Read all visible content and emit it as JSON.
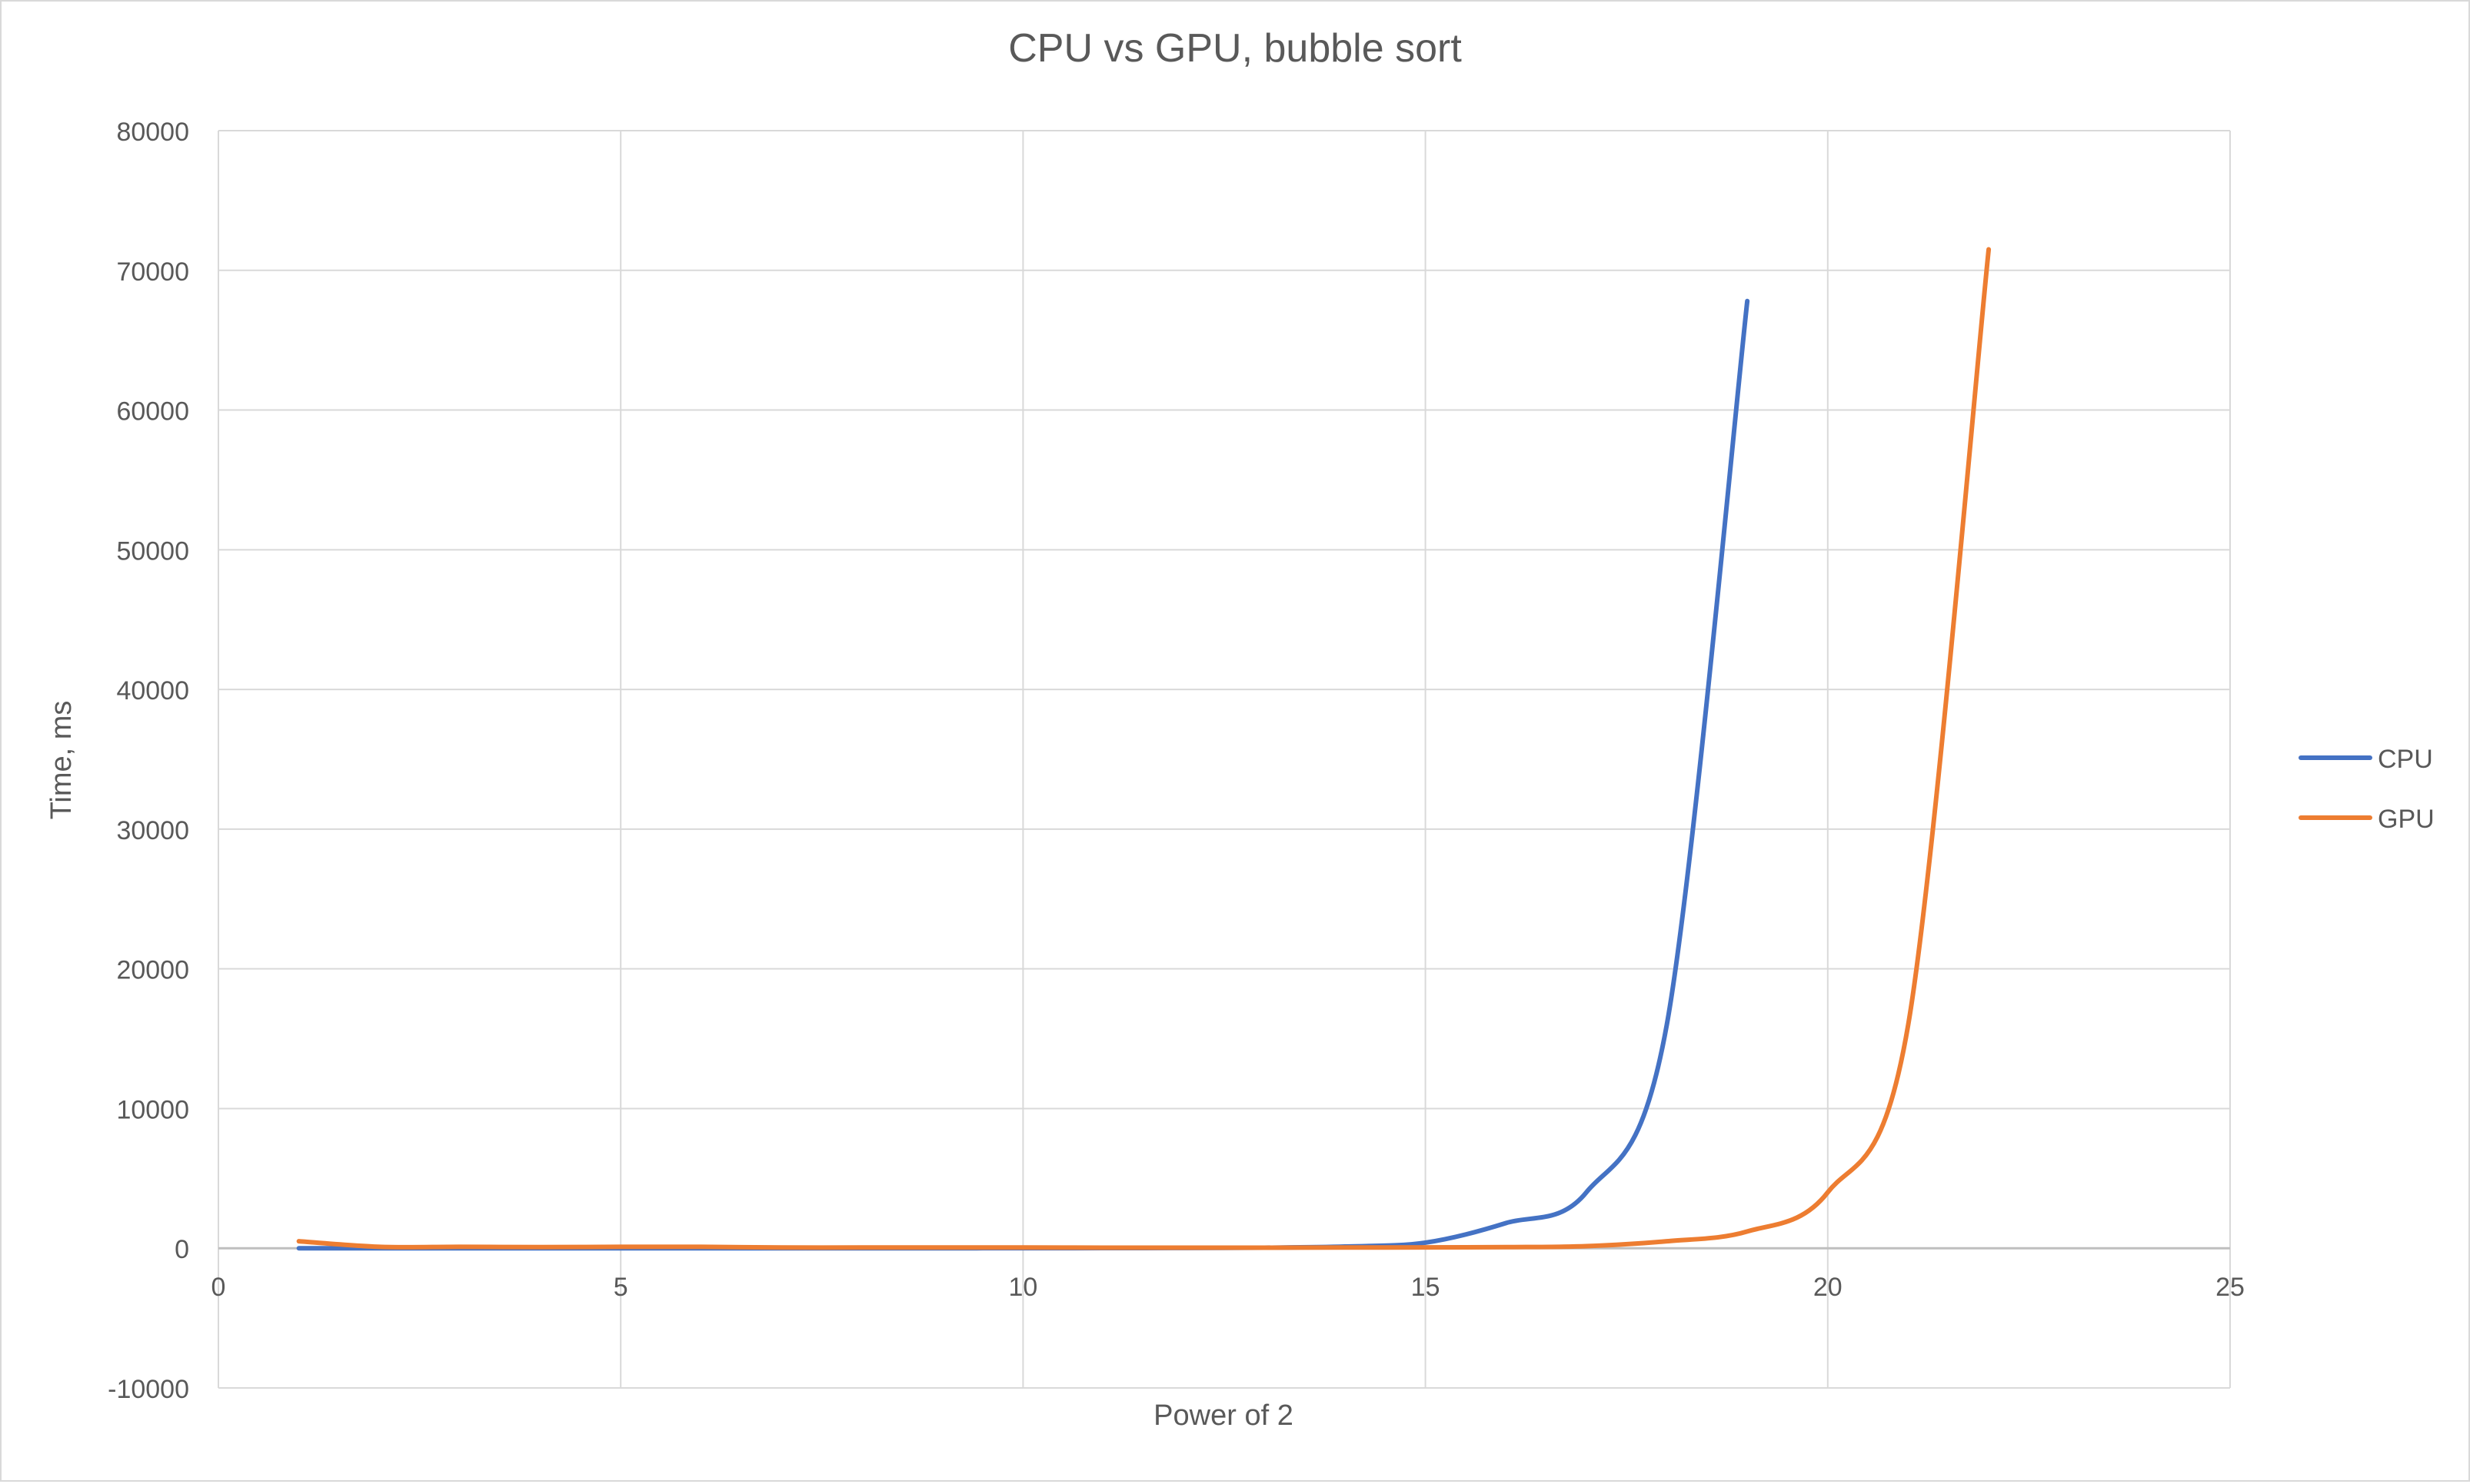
{
  "chart_data": {
    "type": "line",
    "title": "CPU vs GPU, bubble sort",
    "xlabel": "Power of 2",
    "ylabel": "Time, ms",
    "xlim": [
      0,
      25
    ],
    "ylim": [
      -10000,
      80000
    ],
    "x_ticks": [
      0,
      5,
      10,
      15,
      20,
      25
    ],
    "y_ticks": [
      -10000,
      0,
      10000,
      20000,
      30000,
      40000,
      50000,
      60000,
      70000,
      80000
    ],
    "grid": true,
    "legend_position": "right",
    "series": [
      {
        "name": "CPU",
        "color": "#4472c4",
        "x": [
          1,
          2,
          3,
          4,
          5,
          6,
          7,
          8,
          9,
          10,
          11,
          12,
          13,
          14,
          15,
          16,
          17,
          18,
          19
        ],
        "values": [
          0,
          0,
          0,
          0,
          0,
          0,
          0,
          0,
          0,
          5,
          10,
          20,
          40,
          120,
          400,
          1800,
          4000,
          16000,
          67800
        ]
      },
      {
        "name": "GPU",
        "color": "#ed7d31",
        "x": [
          1,
          2,
          3,
          4,
          5,
          6,
          7,
          8,
          9,
          10,
          11,
          12,
          13,
          14,
          15,
          16,
          17,
          18,
          19,
          20,
          21,
          22
        ],
        "values": [
          500,
          100,
          100,
          80,
          100,
          100,
          50,
          50,
          50,
          50,
          40,
          40,
          40,
          50,
          60,
          80,
          150,
          500,
          1200,
          4000,
          16000,
          71500
        ]
      }
    ]
  }
}
